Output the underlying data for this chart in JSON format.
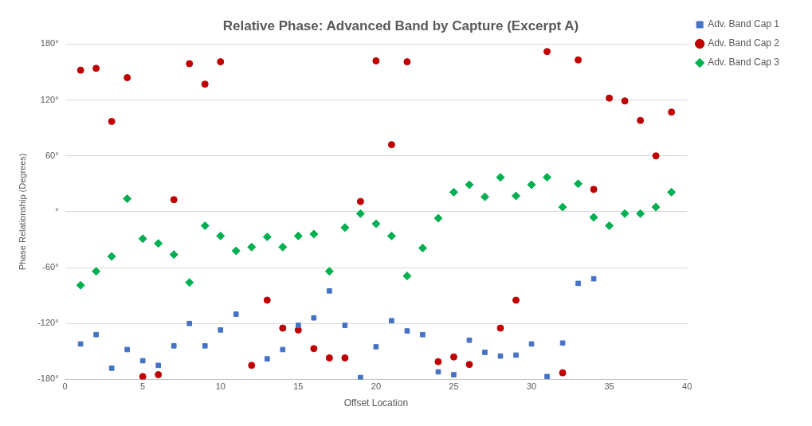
{
  "chart_data": {
    "type": "scatter",
    "title": "Relative Phase: Advanced Band by Capture (Excerpt A)",
    "xlabel": "Offset Location",
    "ylabel": "Phase Relationship (Degrees)",
    "xlim": [
      0,
      40
    ],
    "xticks": [
      0,
      5,
      10,
      15,
      20,
      25,
      30,
      35,
      40
    ],
    "ylim": [
      -180,
      180
    ],
    "yticks": [
      {
        "value": -180,
        "label": "-180°"
      },
      {
        "value": -120,
        "label": "-120°"
      },
      {
        "value": -60,
        "label": "-60°"
      },
      {
        "value": 0,
        "label": "°"
      },
      {
        "value": 60,
        "label": "60°"
      },
      {
        "value": 120,
        "label": "120°"
      },
      {
        "value": 180,
        "label": "180°"
      }
    ],
    "grid": "y",
    "legend": "right",
    "series": [
      {
        "name": "Adv. Band Cap 1",
        "color": "#4472c4",
        "marker": "square",
        "x": [
          1,
          2,
          3,
          4,
          5,
          6,
          7,
          8,
          9,
          10,
          11,
          13,
          14,
          15,
          16,
          17,
          18,
          19,
          20,
          21,
          22,
          23,
          24,
          25,
          26,
          27,
          28,
          29,
          30,
          31,
          32,
          33,
          34
        ],
        "values": [
          -142,
          -132,
          -168,
          -148,
          -160,
          -165,
          -144,
          -120,
          -144,
          -127,
          -110,
          -158,
          -148,
          -122,
          -114,
          -85,
          -122,
          -178,
          -145,
          -117,
          -128,
          -132,
          -172,
          -175,
          -138,
          -151,
          -155,
          -154,
          -142,
          -177,
          -141,
          -77,
          -72
        ]
      },
      {
        "name": "Adv. Band Cap 2",
        "color": "#c00000",
        "marker": "circle",
        "x": [
          1,
          2,
          3,
          4,
          5,
          6,
          7,
          8,
          9,
          10,
          12,
          13,
          14,
          15,
          16,
          17,
          18,
          19,
          20,
          21,
          22,
          24,
          25,
          26,
          28,
          29,
          31,
          32,
          33,
          34,
          35,
          36,
          37,
          38,
          39
        ],
        "values": [
          152,
          154,
          97,
          144,
          -177,
          -175,
          13,
          159,
          137,
          161,
          -165,
          -95,
          -125,
          -127,
          -147,
          -157,
          -157,
          11,
          162,
          72,
          161,
          -161,
          -156,
          -164,
          -125,
          -95,
          172,
          -173,
          163,
          24,
          122,
          119,
          98,
          60,
          107
        ]
      },
      {
        "name": "Adv. Band Cap 3",
        "color": "#00b050",
        "marker": "diamond",
        "x": [
          1,
          2,
          3,
          4,
          5,
          6,
          7,
          8,
          9,
          10,
          11,
          12,
          13,
          14,
          15,
          16,
          17,
          18,
          19,
          20,
          21,
          22,
          23,
          24,
          25,
          26,
          27,
          28,
          29,
          30,
          31,
          32,
          33,
          34,
          35,
          36,
          37,
          38,
          39
        ],
        "values": [
          -79,
          -64,
          -48,
          14,
          -29,
          -34,
          -46,
          -76,
          -15,
          -26,
          -42,
          -38,
          -27,
          -38,
          -26,
          -24,
          -64,
          -17,
          -2,
          -13,
          -26,
          -69,
          -39,
          -7,
          21,
          29,
          16,
          37,
          17,
          29,
          37,
          5,
          30,
          -6,
          -15,
          -2,
          -2,
          5,
          21
        ]
      }
    ]
  }
}
